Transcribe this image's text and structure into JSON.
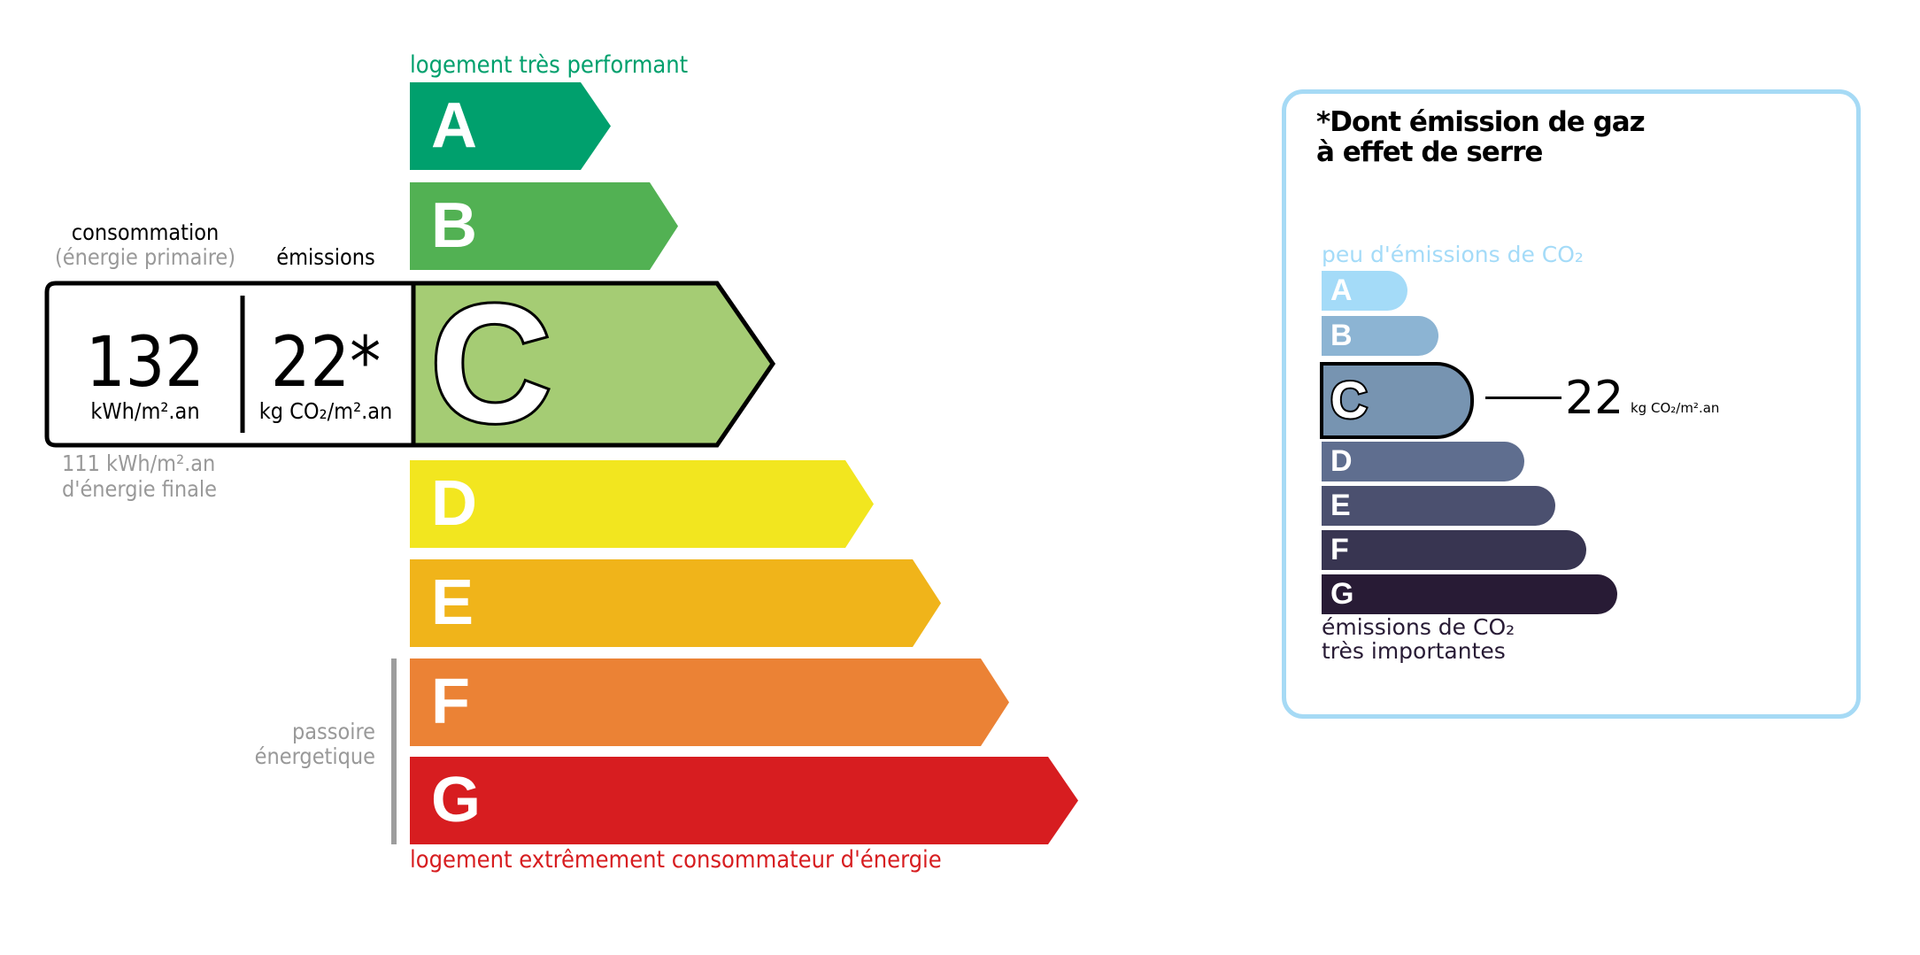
{
  "energy": {
    "top_label": "logement très performant",
    "bottom_label": "logement extrêmement consommateur d'énergie",
    "classes": [
      {
        "letter": "A",
        "color": "#00a06d"
      },
      {
        "letter": "B",
        "color": "#52b153"
      },
      {
        "letter": "C",
        "color": "#a5cc74"
      },
      {
        "letter": "D",
        "color": "#f2e61f"
      },
      {
        "letter": "E",
        "color": "#f0b41a"
      },
      {
        "letter": "F",
        "color": "#eb8235"
      },
      {
        "letter": "G",
        "color": "#d71d20"
      }
    ],
    "current_class": "C",
    "consumption_label": "consommation",
    "consumption_sublabel": "(énergie primaire)",
    "emissions_label": "émissions",
    "consumption_value": "132",
    "consumption_unit": "kWh/m².an",
    "emissions_value": "22*",
    "emissions_unit": "kg CO₂/m².an",
    "final_energy_value": "111 kWh/m².an",
    "final_energy_label": "d'énergie finale",
    "passoire_line1": "passoire",
    "passoire_line2": "énergetique"
  },
  "ghg": {
    "title_line1": "*Dont émission de gaz",
    "title_line2": "à effet de serre",
    "top_label": "peu d'émissions de CO₂",
    "bottom_line1": "émissions de CO₂",
    "bottom_line2": "très importantes",
    "classes": [
      {
        "letter": "A",
        "color": "#a4dbf8"
      },
      {
        "letter": "B",
        "color": "#8cb4d3"
      },
      {
        "letter": "C",
        "color": "#7794b1"
      },
      {
        "letter": "D",
        "color": "#5f6e8f"
      },
      {
        "letter": "E",
        "color": "#4b506f"
      },
      {
        "letter": "F",
        "color": "#383551"
      },
      {
        "letter": "G",
        "color": "#281b35"
      }
    ],
    "current_class": "C",
    "value": "22",
    "unit": "kg CO₂/m².an",
    "border_color": "#a6daf5"
  }
}
